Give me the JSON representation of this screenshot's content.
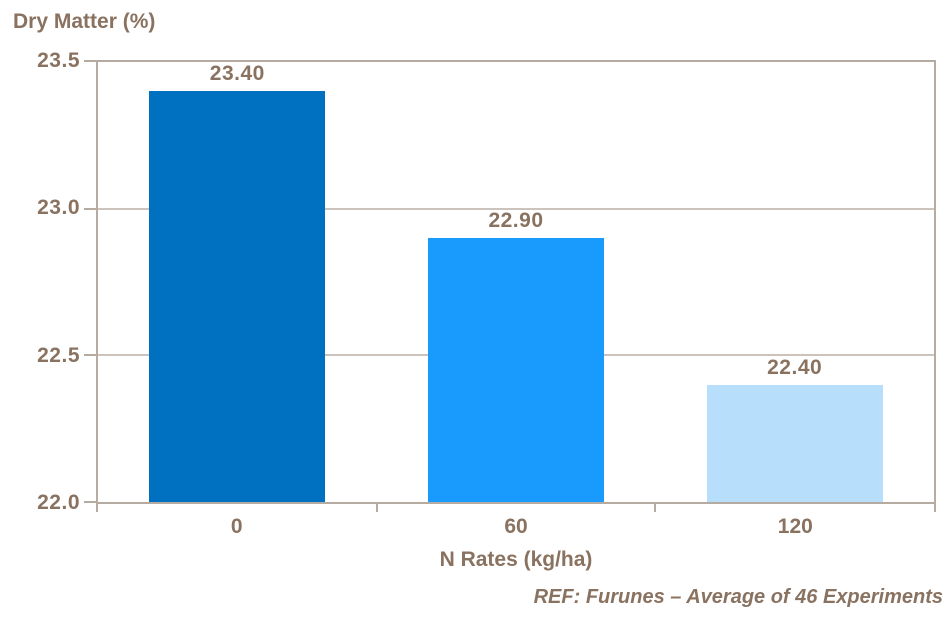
{
  "chart_data": {
    "type": "bar",
    "title": "Dry Matter (%)",
    "xlabel": "N Rates (kg/ha)",
    "ylabel": "Dry Matter (%)",
    "categories": [
      "0",
      "60",
      "120"
    ],
    "values": [
      23.4,
      22.9,
      22.4
    ],
    "value_labels": [
      "23.40",
      "22.90",
      "22.40"
    ],
    "ylim": [
      22.0,
      23.5
    ],
    "yticks": [
      22.0,
      22.5,
      23.0,
      23.5
    ],
    "ytick_labels_top_to_bottom": [
      "23.5",
      "23.0",
      "22.5",
      "22.0"
    ],
    "grid": "horizontal",
    "legend_position": "none",
    "bar_colors": [
      "#0071C1",
      "#189BFC",
      "#B7DFFB"
    ],
    "footnote": "REF: Furunes – Average of 46 Experiments"
  },
  "colors": {
    "text": "#8A7260",
    "axis": "#B5ABA0",
    "gridline": "#CBC3BC",
    "background": "#FFFFFF"
  }
}
